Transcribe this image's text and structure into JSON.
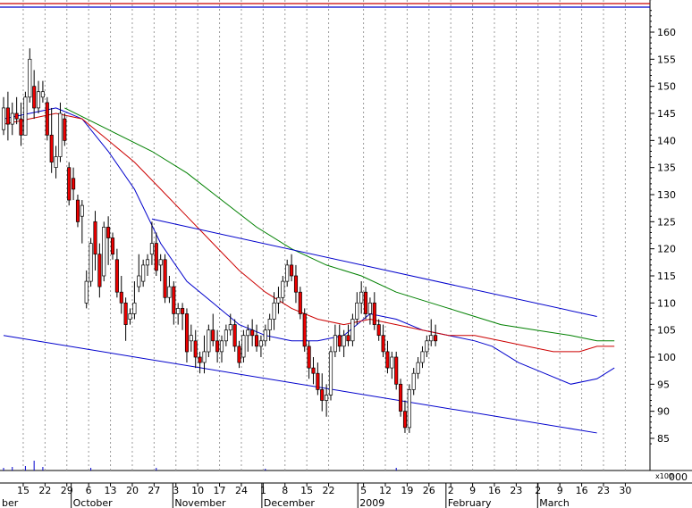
{
  "chart_data": {
    "type": "candlestick",
    "y_axis": {
      "ticks": [
        85,
        90,
        95,
        100,
        105,
        110,
        115,
        120,
        125,
        130,
        135,
        140,
        145,
        150,
        155,
        160
      ],
      "ylim": [
        81.5,
        166.8
      ],
      "position": "right"
    },
    "volume_axis_label": "x100",
    "volume_axis_value": "000",
    "x_axis": {
      "day_ticks": [
        {
          "label": "15",
          "t": 4.5
        },
        {
          "label": "22",
          "t": 9.5
        },
        {
          "label": "29",
          "t": 14.5
        },
        {
          "label": "6",
          "t": 19.5
        },
        {
          "label": "13",
          "t": 24.5
        },
        {
          "label": "20",
          "t": 29.5
        },
        {
          "label": "27",
          "t": 34.5
        },
        {
          "label": "3",
          "t": 39.5
        },
        {
          "label": "10",
          "t": 44.5
        },
        {
          "label": "17",
          "t": 49.5
        },
        {
          "label": "24",
          "t": 54.5
        },
        {
          "label": "1",
          "t": 59.5
        },
        {
          "label": "8",
          "t": 64.5
        },
        {
          "label": "15",
          "t": 69.5
        },
        {
          "label": "22",
          "t": 74.5
        },
        {
          "label": "5",
          "t": 82.5
        },
        {
          "label": "12",
          "t": 87.5
        },
        {
          "label": "19",
          "t": 92.5
        },
        {
          "label": "26",
          "t": 97.5
        },
        {
          "label": "2",
          "t": 102.5
        },
        {
          "label": "9",
          "t": 107.5
        },
        {
          "label": "16",
          "t": 112.5
        },
        {
          "label": "23",
          "t": 117.5
        },
        {
          "label": "2",
          "t": 122.5
        },
        {
          "label": "9",
          "t": 127.5
        },
        {
          "label": "16",
          "t": 132.5
        },
        {
          "label": "23",
          "t": 137.5
        },
        {
          "label": "30",
          "t": 142.5
        }
      ],
      "month_labels": [
        {
          "label": "ber",
          "t": 0
        },
        {
          "label": "October",
          "t": 15.5
        },
        {
          "label": "November",
          "t": 38.8
        },
        {
          "label": "December",
          "t": 59.2
        },
        {
          "label": "2009",
          "t": 81.2
        },
        {
          "label": "February",
          "t": 101.4
        },
        {
          "label": "March",
          "t": 122.4
        }
      ],
      "month_separators": [
        15.5,
        38.8,
        59.2,
        81.2,
        101.4,
        122.4
      ]
    },
    "candles": [
      [
        142,
        148,
        141,
        146
      ],
      [
        146,
        149,
        140,
        143
      ],
      [
        143,
        147,
        141,
        145
      ],
      [
        145,
        148,
        143,
        144
      ],
      [
        144,
        147,
        139,
        141
      ],
      [
        141,
        149,
        141,
        148
      ],
      [
        148,
        157,
        147,
        155
      ],
      [
        150,
        153,
        144,
        146
      ],
      [
        146,
        151,
        145,
        149
      ],
      [
        148,
        151,
        147,
        149
      ],
      [
        147,
        148,
        140,
        141
      ],
      [
        141,
        146,
        134,
        136
      ],
      [
        135,
        139,
        133,
        137
      ],
      [
        137,
        147,
        136,
        145
      ],
      [
        144,
        145,
        139,
        140
      ],
      [
        135,
        136,
        128,
        129
      ],
      [
        133,
        135,
        129,
        131
      ],
      [
        129,
        130,
        124,
        125
      ],
      [
        126,
        129,
        121,
        128
      ],
      [
        110,
        116,
        109,
        114
      ],
      [
        114,
        122,
        113,
        121
      ],
      [
        125,
        127,
        116,
        119
      ],
      [
        119,
        121,
        111,
        113
      ],
      [
        115,
        125,
        114,
        124
      ],
      [
        124,
        126,
        117,
        122
      ],
      [
        122,
        123,
        118,
        119
      ],
      [
        118,
        120,
        111,
        112
      ],
      [
        112,
        115,
        108,
        110
      ],
      [
        110,
        111,
        103,
        106
      ],
      [
        107,
        109,
        106,
        108
      ],
      [
        108,
        114,
        107,
        110
      ],
      [
        113,
        119,
        112,
        115
      ],
      [
        114,
        118,
        113,
        117
      ],
      [
        117,
        119,
        115,
        118
      ],
      [
        119,
        125,
        117,
        121
      ],
      [
        121,
        123,
        115,
        116
      ],
      [
        117,
        119,
        114,
        118
      ],
      [
        118,
        119,
        110,
        111
      ],
      [
        111,
        115,
        110,
        113
      ],
      [
        113,
        114,
        106,
        108
      ],
      [
        108,
        110,
        106,
        109
      ],
      [
        109,
        110,
        105,
        108
      ],
      [
        108,
        109,
        99,
        101
      ],
      [
        103,
        106,
        101,
        104
      ],
      [
        103,
        105,
        98,
        100
      ],
      [
        100,
        101,
        97,
        99
      ],
      [
        99,
        104,
        97,
        101
      ],
      [
        101,
        106,
        100,
        105
      ],
      [
        105,
        108,
        102,
        103
      ],
      [
        103,
        105,
        99,
        101
      ],
      [
        101,
        104,
        99,
        103
      ],
      [
        103,
        106,
        102,
        105
      ],
      [
        105,
        108,
        104,
        106
      ],
      [
        106,
        107,
        101,
        102
      ],
      [
        102,
        103,
        98,
        99
      ],
      [
        100,
        105,
        99,
        104
      ],
      [
        104,
        106,
        101,
        105
      ],
      [
        105,
        107,
        102,
        104
      ],
      [
        104,
        106,
        101,
        102
      ],
      [
        102,
        104,
        100,
        103
      ],
      [
        103,
        106,
        102,
        105
      ],
      [
        105,
        108,
        103,
        107
      ],
      [
        107,
        112,
        105,
        110
      ],
      [
        110,
        113,
        108,
        111
      ],
      [
        111,
        115,
        110,
        114
      ],
      [
        114,
        118,
        113,
        117
      ],
      [
        117,
        119,
        114,
        115
      ],
      [
        115,
        117,
        110,
        112
      ],
      [
        112,
        113,
        107,
        108
      ],
      [
        108,
        109,
        101,
        102
      ],
      [
        102,
        103,
        96,
        98
      ],
      [
        98,
        100,
        95,
        97
      ],
      [
        97,
        99,
        93,
        94
      ],
      [
        94,
        97,
        90,
        92
      ],
      [
        92,
        95,
        89,
        93
      ],
      [
        93,
        102,
        92,
        101
      ],
      [
        101,
        106,
        100,
        104
      ],
      [
        104,
        106,
        101,
        102
      ],
      [
        102,
        105,
        100,
        104
      ],
      [
        104,
        106,
        102,
        103
      ],
      [
        103,
        108,
        102,
        107
      ],
      [
        107,
        112,
        106,
        110
      ],
      [
        110,
        114,
        108,
        112
      ],
      [
        112,
        113,
        107,
        108
      ],
      [
        108,
        111,
        106,
        110
      ],
      [
        110,
        112,
        105,
        106
      ],
      [
        106,
        107,
        103,
        104
      ],
      [
        104,
        106,
        100,
        101
      ],
      [
        101,
        103,
        97,
        98
      ],
      [
        98,
        101,
        96,
        100
      ],
      [
        100,
        101,
        94,
        95
      ],
      [
        95,
        96,
        89,
        90
      ],
      [
        90,
        92,
        86,
        87
      ],
      [
        87,
        95,
        86,
        94
      ],
      [
        94,
        98,
        93,
        97
      ],
      [
        97,
        100,
        96,
        99
      ],
      [
        99,
        102,
        98,
        101
      ],
      [
        101,
        104,
        100,
        103
      ],
      [
        103,
        107,
        102,
        104
      ],
      [
        104,
        106,
        102,
        103
      ]
    ],
    "overlay_lines": [
      {
        "name": "",
        "color": "#0000cc",
        "points": [
          [
            0,
            144
          ],
          [
            6,
            145
          ],
          [
            12,
            146
          ],
          [
            18,
            144
          ],
          [
            24,
            138
          ],
          [
            30,
            131
          ],
          [
            36,
            121
          ],
          [
            42,
            114
          ],
          [
            48,
            110
          ],
          [
            54,
            106
          ],
          [
            60,
            104
          ],
          [
            66,
            103
          ],
          [
            72,
            103
          ],
          [
            78,
            104
          ],
          [
            84,
            108
          ],
          [
            90,
            107
          ],
          [
            96,
            105
          ],
          [
            102,
            104
          ],
          [
            108,
            103
          ],
          [
            112,
            102
          ],
          [
            118,
            99
          ],
          [
            124,
            97
          ],
          [
            130,
            95
          ],
          [
            136,
            96
          ],
          [
            140,
            98
          ]
        ]
      },
      {
        "name": "",
        "color": "#cc0000",
        "points": [
          [
            0,
            143
          ],
          [
            6,
            144
          ],
          [
            12,
            145
          ],
          [
            18,
            144
          ],
          [
            24,
            140
          ],
          [
            30,
            136
          ],
          [
            36,
            131
          ],
          [
            42,
            126
          ],
          [
            48,
            121
          ],
          [
            54,
            116
          ],
          [
            60,
            112
          ],
          [
            66,
            109
          ],
          [
            72,
            107
          ],
          [
            78,
            106
          ],
          [
            84,
            107
          ],
          [
            90,
            106
          ],
          [
            96,
            105
          ],
          [
            102,
            104
          ],
          [
            108,
            104
          ],
          [
            114,
            103
          ],
          [
            120,
            102
          ],
          [
            126,
            101
          ],
          [
            132,
            101
          ],
          [
            136,
            102
          ],
          [
            140,
            102
          ]
        ]
      },
      {
        "name": "",
        "color": "#008000",
        "points": [
          [
            14,
            146
          ],
          [
            24,
            142
          ],
          [
            34,
            138
          ],
          [
            42,
            134
          ],
          [
            50,
            129
          ],
          [
            58,
            124
          ],
          [
            66,
            120
          ],
          [
            74,
            117
          ],
          [
            82,
            115
          ],
          [
            90,
            112
          ],
          [
            98,
            110
          ],
          [
            106,
            108
          ],
          [
            114,
            106
          ],
          [
            122,
            105
          ],
          [
            130,
            104
          ],
          [
            136,
            103
          ],
          [
            140,
            103
          ]
        ]
      }
    ],
    "trendlines": [
      {
        "color": "#0000cc",
        "from": [
          34,
          125.5
        ],
        "to": [
          136,
          107.5
        ]
      },
      {
        "color": "#0000cc",
        "from": [
          0,
          104
        ],
        "to": [
          136,
          86
        ]
      }
    ],
    "top_lines": [
      {
        "color": "#cc0000",
        "value": 167.8
      },
      {
        "color": "#0000cc",
        "value": 167.3
      }
    ],
    "volume_marks": [
      {
        "t": 0,
        "h": 3
      },
      {
        "t": 2,
        "h": 4
      },
      {
        "t": 5,
        "h": 5
      },
      {
        "t": 7,
        "h": 11
      },
      {
        "t": 9,
        "h": 4
      },
      {
        "t": 20,
        "h": 3
      },
      {
        "t": 35,
        "h": 3
      },
      {
        "t": 60,
        "h": 2
      },
      {
        "t": 90,
        "h": 3
      }
    ],
    "grid": "vertical-dotted"
  }
}
